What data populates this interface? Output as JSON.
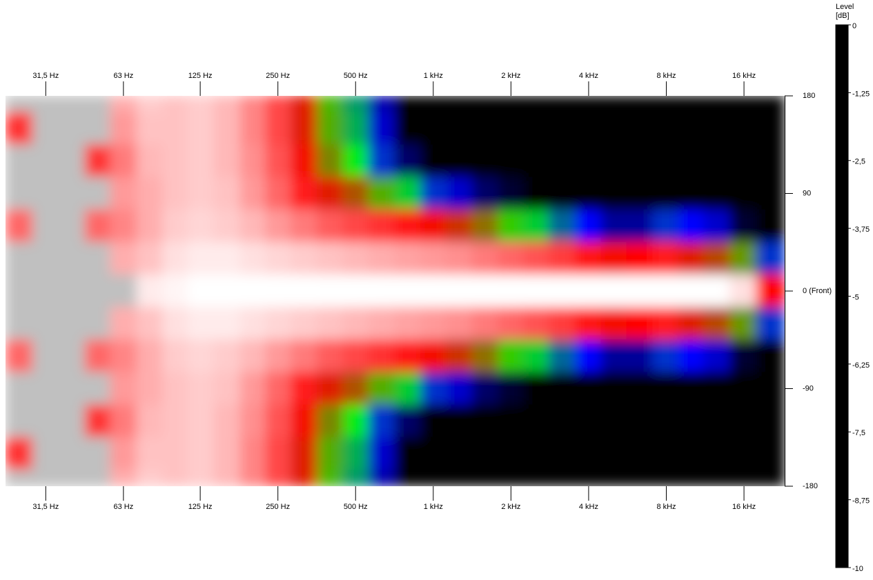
{
  "chart_data": {
    "type": "heatmap",
    "x": [
      25,
      31.5,
      40,
      50,
      63,
      80,
      100,
      125,
      160,
      200,
      250,
      315,
      400,
      500,
      630,
      800,
      1000,
      1250,
      1600,
      2000,
      2500,
      3150,
      4000,
      5000,
      6300,
      8000,
      10000,
      12500,
      16000,
      20000
    ],
    "y": [
      180,
      150,
      120,
      90,
      60,
      30,
      0,
      -30,
      -60,
      -90,
      -120,
      -150,
      -180
    ],
    "z": [
      [
        0.4,
        0.4,
        0.5,
        0.4,
        -0.8,
        -0.5,
        -0.6,
        -0.5,
        -0.7,
        -1.2,
        -1.8,
        -2.8,
        -4.3,
        -6,
        -8.3,
        -10,
        -10,
        -10,
        -10,
        -10,
        -10,
        -10,
        -10,
        -10,
        -10,
        -10,
        -10,
        -10,
        -10,
        -10
      ],
      [
        -2,
        0.5,
        0.3,
        0.3,
        -1,
        -0.6,
        -0.6,
        -0.5,
        -0.7,
        -1.2,
        -1.8,
        -2.8,
        -4.2,
        -5.8,
        -8,
        -10,
        -10,
        -10,
        -10,
        -10,
        -10,
        -10,
        -10,
        -10,
        -10,
        -10,
        -10,
        -10,
        -10,
        -10
      ],
      [
        0.5,
        0.3,
        0.5,
        -2,
        -1.3,
        -0.7,
        -0.6,
        -0.5,
        -0.7,
        -1.1,
        -1.7,
        -2.6,
        -3.8,
        -5.2,
        -7,
        -9,
        -10,
        -10,
        -10,
        -10,
        -10,
        -10,
        -10,
        -10,
        -10,
        -10,
        -10,
        -10,
        -10,
        -10
      ],
      [
        0.4,
        0.5,
        0.4,
        0.3,
        -1,
        -0.8,
        -0.6,
        -0.5,
        -0.6,
        -1,
        -1.5,
        -2.2,
        -2.8,
        -3.3,
        -4.2,
        -5.5,
        -7,
        -8,
        -9,
        -9.5,
        -10,
        -10,
        -10,
        -10,
        -10,
        -10,
        -10,
        -10,
        -10,
        -10
      ],
      [
        -1.5,
        0.3,
        0.3,
        -1.5,
        -1.2,
        -0.8,
        -0.5,
        -0.4,
        -0.5,
        -0.7,
        -1,
        -1.3,
        -1.6,
        -1.8,
        -2,
        -2.3,
        -2.6,
        -3,
        -3.6,
        -4.5,
        -5.5,
        -6.5,
        -7.5,
        -8.5,
        -8.5,
        -7,
        -7.5,
        -8,
        -9.5,
        -10
      ],
      [
        0.3,
        0.4,
        0.5,
        0.2,
        -0.8,
        -0.6,
        -0.3,
        -0.2,
        -0.2,
        -0.3,
        -0.4,
        -0.5,
        -0.6,
        -0.7,
        -0.8,
        -0.9,
        -1,
        -1.1,
        -1.3,
        -1.5,
        -1.7,
        -1.9,
        -2.3,
        -2.6,
        -2.5,
        -2.2,
        -2.8,
        -3.2,
        -4,
        -7
      ],
      [
        0.5,
        0.5,
        0.4,
        0.5,
        0.2,
        -0.2,
        -0.1,
        0,
        0,
        0,
        0,
        0,
        0,
        0,
        0,
        0,
        0,
        0,
        0,
        0,
        0,
        0,
        0,
        0,
        0,
        0,
        0,
        0,
        -0.3,
        -2.5
      ],
      [
        0.3,
        0.4,
        0.5,
        0.2,
        -0.8,
        -0.6,
        -0.3,
        -0.2,
        -0.2,
        -0.3,
        -0.4,
        -0.5,
        -0.6,
        -0.7,
        -0.8,
        -0.9,
        -1,
        -1.1,
        -1.3,
        -1.5,
        -1.7,
        -1.9,
        -2.3,
        -2.6,
        -2.5,
        -2.2,
        -2.8,
        -3.2,
        -4,
        -7
      ],
      [
        -1.5,
        0.3,
        0.3,
        -1.5,
        -1.2,
        -0.8,
        -0.5,
        -0.4,
        -0.5,
        -0.7,
        -1,
        -1.3,
        -1.6,
        -1.8,
        -2,
        -2.3,
        -2.6,
        -3,
        -3.6,
        -4.5,
        -5.5,
        -6.5,
        -7.5,
        -8.5,
        -8.5,
        -7,
        -7.5,
        -8,
        -9.5,
        -10
      ],
      [
        0.4,
        0.5,
        0.4,
        0.3,
        -1,
        -0.8,
        -0.6,
        -0.5,
        -0.6,
        -1,
        -1.5,
        -2.2,
        -2.8,
        -3.3,
        -4.2,
        -5.5,
        -7,
        -8,
        -9,
        -9.5,
        -10,
        -10,
        -10,
        -10,
        -10,
        -10,
        -10,
        -10,
        -10,
        -10
      ],
      [
        0.5,
        0.3,
        0.5,
        -2,
        -1.3,
        -0.7,
        -0.6,
        -0.5,
        -0.7,
        -1.1,
        -1.7,
        -2.6,
        -3.8,
        -5.2,
        -7,
        -9,
        -10,
        -10,
        -10,
        -10,
        -10,
        -10,
        -10,
        -10,
        -10,
        -10,
        -10,
        -10,
        -10,
        -10
      ],
      [
        -2,
        0.5,
        0.3,
        0.3,
        -1,
        -0.6,
        -0.6,
        -0.5,
        -0.7,
        -1.2,
        -1.8,
        -2.8,
        -4.2,
        -5.8,
        -8,
        -10,
        -10,
        -10,
        -10,
        -10,
        -10,
        -10,
        -10,
        -10,
        -10,
        -10,
        -10,
        -10,
        -10,
        -10
      ],
      [
        0.4,
        0.4,
        0.5,
        0.4,
        -0.8,
        -0.5,
        -0.6,
        -0.5,
        -0.7,
        -1.2,
        -1.8,
        -2.8,
        -4.3,
        -6,
        -8.3,
        -10,
        -10,
        -10,
        -10,
        -10,
        -10,
        -10,
        -10,
        -10,
        -10,
        -10,
        -10,
        -10,
        -10,
        -10
      ]
    ],
    "xlim": [
      22,
      23000
    ],
    "xscale": "log",
    "xticks": [
      {
        "value": 31.5,
        "label": "31,5 Hz"
      },
      {
        "value": 63,
        "label": "63 Hz"
      },
      {
        "value": 125,
        "label": "125 Hz"
      },
      {
        "value": 250,
        "label": "250 Hz"
      },
      {
        "value": 500,
        "label": "500 Hz"
      },
      {
        "value": 1000,
        "label": "1 kHz"
      },
      {
        "value": 2000,
        "label": "2 kHz"
      },
      {
        "value": 4000,
        "label": "4 kHz"
      },
      {
        "value": 8000,
        "label": "8 kHz"
      },
      {
        "value": 16000,
        "label": "16 kHz"
      }
    ],
    "ylim": [
      -180,
      180
    ],
    "yticks": [
      180,
      90,
      {
        "value": 0,
        "label": "0 (Front)"
      },
      -90,
      -180
    ],
    "colorbar_label": "Level",
    "colorbar_unit": "[dB]",
    "zlim": [
      -10,
      0
    ],
    "zticks": [
      0,
      {
        "value": -1.25,
        "label": "-1,25"
      },
      {
        "value": -2.5,
        "label": "-2,5"
      },
      {
        "value": -3.75,
        "label": "-3,75"
      },
      -5,
      {
        "value": -6.25,
        "label": "-6,25"
      },
      {
        "value": -7.5,
        "label": "-7,5"
      },
      {
        "value": -8.75,
        "label": "-8,75"
      },
      -10
    ],
    "colorscale": [
      [
        -10,
        "#000000"
      ],
      [
        -7.5,
        "#0000ff"
      ],
      [
        -5,
        "#00ff00"
      ],
      [
        -2.5,
        "#ff0000"
      ],
      [
        0,
        "#ffffff"
      ]
    ],
    "over_color": "#c0c0c0"
  }
}
